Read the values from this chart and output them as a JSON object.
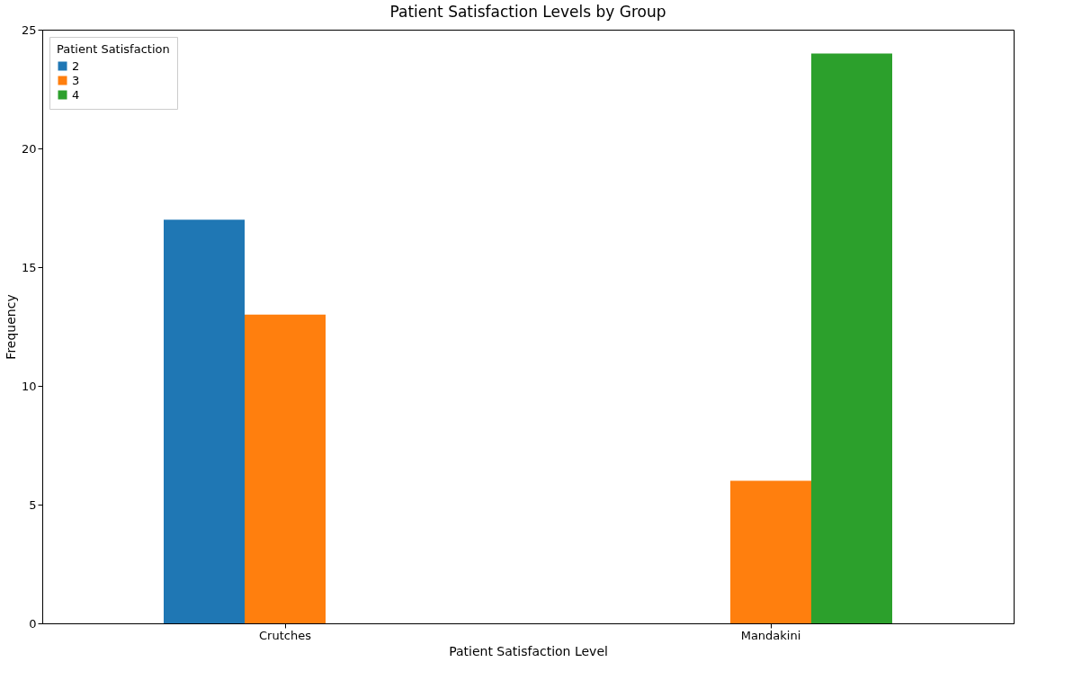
{
  "chart_data": {
    "type": "bar",
    "title": "Patient Satisfaction Levels by Group",
    "xlabel": "Patient Satisfaction Level",
    "ylabel": "Frequency",
    "legend_title": "Patient Satisfaction",
    "categories": [
      "Crutches",
      "Mandakini"
    ],
    "series": [
      {
        "name": "2",
        "color": "#1f77b4",
        "values": [
          17,
          null
        ]
      },
      {
        "name": "3",
        "color": "#ff7f0e",
        "values": [
          13,
          6
        ]
      },
      {
        "name": "4",
        "color": "#2ca02c",
        "values": [
          null,
          24
        ]
      }
    ],
    "ylim": [
      0,
      25
    ],
    "yticks": [
      0,
      5,
      10,
      15,
      20,
      25
    ],
    "grid": false,
    "legend": "top left"
  }
}
